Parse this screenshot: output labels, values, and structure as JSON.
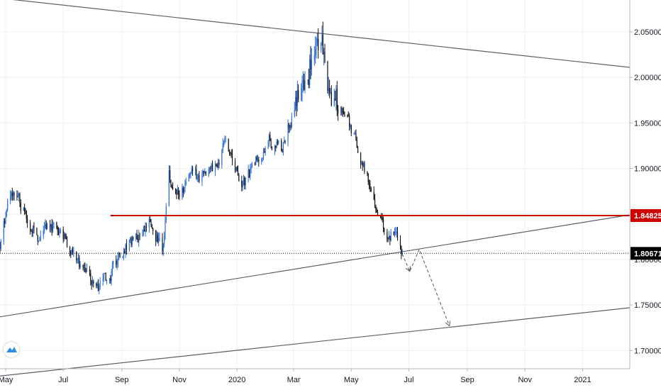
{
  "chart_data": {
    "type": "candlestick",
    "title": "",
    "instrument": "",
    "y_range": [
      1.68,
      2.085
    ],
    "y_ticks": [
      "2.05000",
      "2.00000",
      "1.95000",
      "1.90000",
      "1.85000",
      "1.80000",
      "1.75000",
      "1.70000"
    ],
    "x_ticks": [
      "May",
      "Jul",
      "Sep",
      "Nov",
      "2020",
      "Mar",
      "May",
      "Jul",
      "Sep",
      "Nov",
      "2021"
    ],
    "x_range": [
      "2019-04-25",
      "2021-02-20"
    ],
    "grid": true,
    "candle_colors": {
      "up": "#2f6fd6",
      "down": "#111111"
    },
    "price_path": [
      [
        "2019-04-25",
        1.816
      ],
      [
        "2019-05-06",
        1.872
      ],
      [
        "2019-05-20",
        1.856
      ],
      [
        "2019-06-05",
        1.822
      ],
      [
        "2019-06-18",
        1.837
      ],
      [
        "2019-07-01",
        1.826
      ],
      [
        "2019-07-15",
        1.797
      ],
      [
        "2019-07-29",
        1.784
      ],
      [
        "2019-08-08",
        1.771
      ],
      [
        "2019-08-20",
        1.783
      ],
      [
        "2019-09-02",
        1.808
      ],
      [
        "2019-09-16",
        1.826
      ],
      [
        "2019-09-30",
        1.841
      ],
      [
        "2019-10-14",
        1.812
      ],
      [
        "2019-10-21",
        1.891
      ],
      [
        "2019-11-01",
        1.872
      ],
      [
        "2019-11-13",
        1.889
      ],
      [
        "2019-11-27",
        1.893
      ],
      [
        "2019-12-11",
        1.904
      ],
      [
        "2019-12-20",
        1.937
      ],
      [
        "2020-01-06",
        1.876
      ],
      [
        "2020-01-20",
        1.904
      ],
      [
        "2020-02-04",
        1.934
      ],
      [
        "2020-02-17",
        1.923
      ],
      [
        "2020-02-28",
        1.958
      ],
      [
        "2020-03-10",
        1.99
      ],
      [
        "2020-03-20",
        2.025
      ],
      [
        "2020-03-30",
        2.047
      ],
      [
        "2020-04-08",
        1.985
      ],
      [
        "2020-04-23",
        1.958
      ],
      [
        "2020-05-06",
        1.932
      ],
      [
        "2020-05-15",
        1.896
      ],
      [
        "2020-05-27",
        1.866
      ],
      [
        "2020-06-08",
        1.826
      ],
      [
        "2020-06-15",
        1.831
      ],
      [
        "2020-06-22",
        1.811
      ],
      [
        "2020-06-24",
        1.8067
      ]
    ],
    "horizontal_lines": [
      {
        "price": 1.84825,
        "label": "1.84825",
        "color": "#cc0000",
        "style": "solid",
        "from": "2019-08-20"
      },
      {
        "price": 1.80671,
        "label": "1.80671",
        "color": "#111111",
        "style": "dotted",
        "from": "2019-04-25"
      }
    ],
    "trend_lines": [
      {
        "from": [
          "2019-04-25",
          2.087
        ],
        "to": [
          "2021-02-20",
          2.011
        ]
      },
      {
        "from": [
          "2019-04-25",
          1.737
        ],
        "to": [
          "2021-02-20",
          1.849
        ]
      },
      {
        "from": [
          "2019-04-25",
          1.672
        ],
        "to": [
          "2021-02-20",
          1.747
        ]
      }
    ],
    "projection_path": [
      [
        "2020-06-24",
        1.806
      ],
      [
        "2020-07-02",
        1.787
      ],
      [
        "2020-07-12",
        1.811
      ],
      [
        "2020-08-13",
        1.727
      ]
    ]
  }
}
